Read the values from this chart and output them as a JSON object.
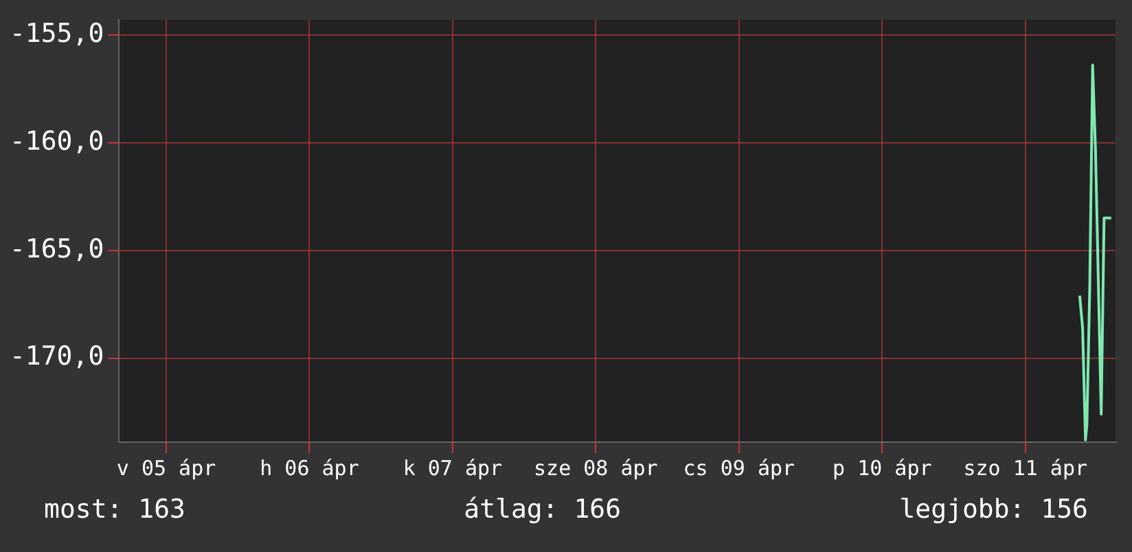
{
  "chart_data": {
    "type": "line",
    "x": [
      "--04-11T09:07",
      "--04-11T09:36",
      "--04-11T10:05",
      "--04-11T10:19",
      "--04-11T10:48",
      "--04-11T11:17",
      "--04-11T11:46",
      "--04-11T12:43",
      "--04-11T13:12",
      "--04-11T14:24"
    ],
    "series": [
      {
        "color": "#7ee8b0",
        "values": [
          -167.1,
          -168.6,
          -173.8,
          -173.1,
          -166.7,
          -156.4,
          -160.4,
          -172.6,
          -163.5,
          -163.5
        ]
      }
    ],
    "xlim": [
      "--04-04T16:05",
      "--04-11T15:07"
    ],
    "xticks": [
      {
        "value": "--04-05",
        "label": "v 05 ápr"
      },
      {
        "value": "--04-06",
        "label": "h 06 ápr"
      },
      {
        "value": "--04-07",
        "label": "k 07 ápr"
      },
      {
        "value": "--04-08",
        "label": "sze 08 ápr"
      },
      {
        "value": "--04-09",
        "label": "cs 09 ápr"
      },
      {
        "value": "--04-10",
        "label": "p 10 ápr"
      },
      {
        "value": "--04-11",
        "label": "szo 11 ápr"
      }
    ],
    "ylim": [
      -173.9,
      -154.3
    ],
    "yticks": [
      {
        "value": -155,
        "label": "-155,0"
      },
      {
        "value": -160,
        "label": "-160,0"
      },
      {
        "value": -165,
        "label": "-165,0"
      },
      {
        "value": -170,
        "label": "-170,0"
      }
    ],
    "grid": true,
    "marker": "none",
    "annotations": [
      "most: 163",
      "átlag: 166",
      "legjobb: 156"
    ]
  }
}
